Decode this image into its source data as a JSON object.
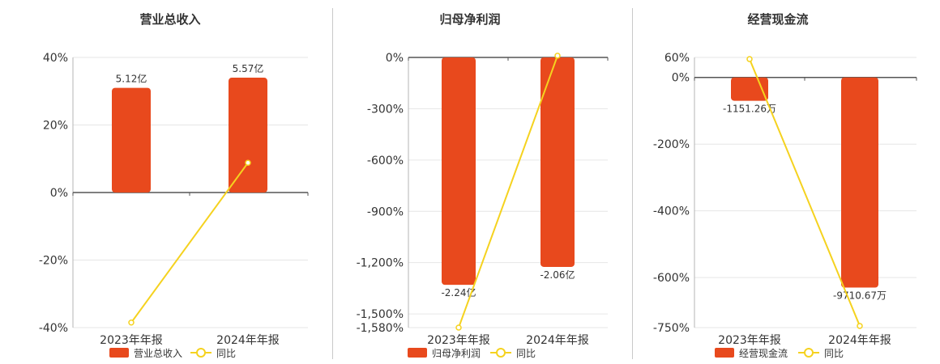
{
  "colors": {
    "bar": "#e8491d",
    "line": "#f5d21f",
    "axis": "#555555",
    "grid": "#e6e6e6",
    "divider": "#c9c9c9"
  },
  "chart_data": [
    {
      "type": "bar",
      "title": "营业总收入",
      "categories": [
        "2023年年报",
        "2024年年报"
      ],
      "y_ticks": [
        "40%",
        "20%",
        "0%",
        "-20%",
        "-40%"
      ],
      "ylim": [
        -40,
        40
      ],
      "series": [
        {
          "name": "营业总收入",
          "kind": "bar",
          "values": [
            31,
            34
          ],
          "labels": [
            "5.12亿",
            "5.57亿"
          ]
        },
        {
          "name": "同比",
          "kind": "line",
          "values": [
            -38.5,
            8.8
          ]
        }
      ],
      "grid": true,
      "legend": "bottom"
    },
    {
      "type": "bar",
      "title": "归母净利润",
      "categories": [
        "2023年年报",
        "2024年年报"
      ],
      "y_ticks": [
        "0%",
        "-300%",
        "-600%",
        "-900%",
        "-1,200%",
        "-1,500%",
        "-1,580%"
      ],
      "ylim": [
        -1580,
        0
      ],
      "series": [
        {
          "name": "归母净利润",
          "kind": "bar",
          "values": [
            -1330,
            -1225
          ],
          "labels": [
            "-2.24亿",
            "-2.06亿"
          ]
        },
        {
          "name": "同比",
          "kind": "line",
          "values": [
            -1580,
            10
          ]
        }
      ],
      "grid": true,
      "legend": "bottom"
    },
    {
      "type": "bar",
      "title": "经营现金流",
      "categories": [
        "2023年年报",
        "2024年年报"
      ],
      "y_ticks": [
        "60%",
        "0%",
        "-200%",
        "-400%",
        "-600%",
        "-750%"
      ],
      "ylim": [
        -750,
        60
      ],
      "series": [
        {
          "name": "经营现金流",
          "kind": "bar",
          "values": [
            -70,
            -630
          ],
          "labels": [
            "-1151.26万",
            "-9710.67万"
          ]
        },
        {
          "name": "同比",
          "kind": "line",
          "values": [
            55,
            -745
          ]
        }
      ],
      "grid": true,
      "legend": "bottom"
    }
  ]
}
